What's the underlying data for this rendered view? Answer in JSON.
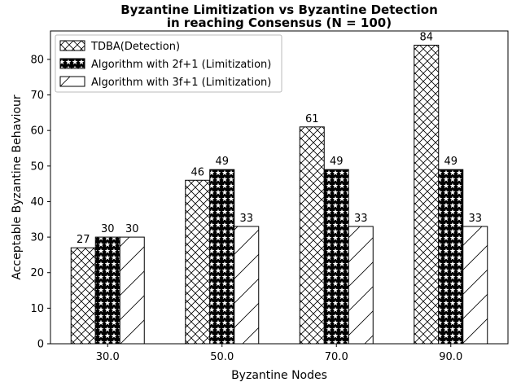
{
  "chart_data": {
    "type": "bar",
    "title_line1": "Byzantine Limitization vs Byzantine Detection",
    "title_line2": "in reaching Consensus (N = 100)",
    "xlabel": "Byzantine Nodes",
    "ylabel": "Acceptable Byzantine Behaviour",
    "categories": [
      "30.0",
      "50.0",
      "70.0",
      "90.0"
    ],
    "ylim": [
      0,
      88
    ],
    "yticks": [
      0,
      10,
      20,
      30,
      40,
      50,
      60,
      70,
      80
    ],
    "grid": false,
    "legend_position": "top-left",
    "series": [
      {
        "name": "TDBA(Detection)",
        "pattern": "crosshatch",
        "values": [
          27,
          46,
          61,
          84
        ]
      },
      {
        "name": "Algorithm with 2f+1 (Limitization)",
        "pattern": "stars",
        "values": [
          30,
          49,
          49,
          49
        ]
      },
      {
        "name": "Algorithm with 3f+1 (Limitization)",
        "pattern": "diagonal",
        "values": [
          30,
          33,
          33,
          33
        ]
      }
    ]
  }
}
